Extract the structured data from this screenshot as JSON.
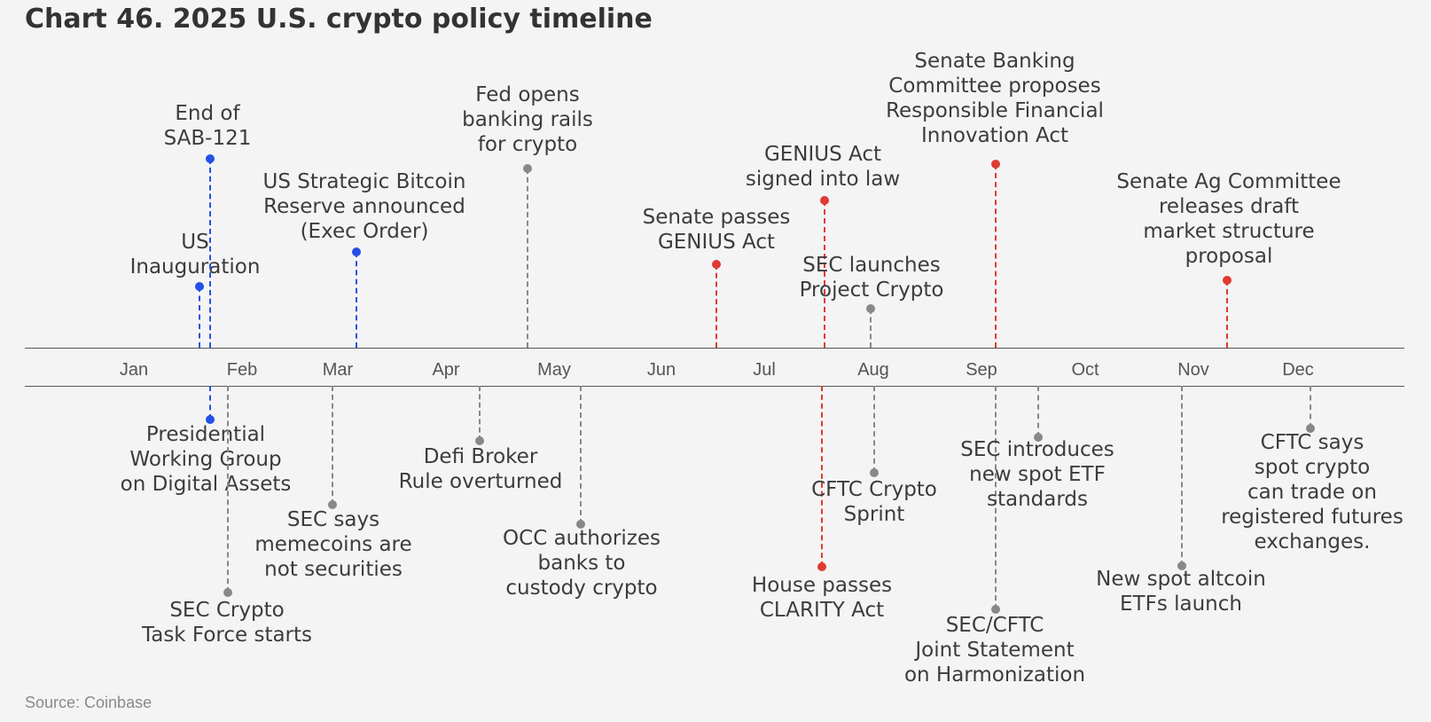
{
  "title": "Chart 46. 2025 U.S. crypto policy timeline",
  "source": "Source: Coinbase",
  "colors": {
    "blue": "#2450e6",
    "red": "#e03a32",
    "gray": "#888888",
    "text": "#3c3c3c"
  },
  "months": [
    "Jan",
    "Feb",
    "Mar",
    "Apr",
    "May",
    "Jun",
    "Jul",
    "Aug",
    "Sep",
    "Oct",
    "Nov",
    "Dec"
  ],
  "events_above": [
    {
      "label": "US\nInauguration",
      "color": "blue"
    },
    {
      "label": "End of\nSAB-121",
      "color": "blue"
    },
    {
      "label": "US Strategic Bitcoin\nReserve announced\n(Exec Order)",
      "color": "blue"
    },
    {
      "label": "Fed opens\nbanking rails\nfor crypto",
      "color": "gray"
    },
    {
      "label": "Senate passes\nGENIUS Act",
      "color": "red"
    },
    {
      "label": "GENIUS Act\nsigned into law",
      "color": "red"
    },
    {
      "label": "SEC launches\nProject Crypto",
      "color": "gray"
    },
    {
      "label": "Senate Banking\nCommittee proposes\nResponsible Financial\nInnovation Act",
      "color": "red"
    },
    {
      "label": "Senate Ag Committee\nreleases draft\nmarket structure\nproposal",
      "color": "red"
    }
  ],
  "events_below": [
    {
      "label": "Presidential\nWorking Group\non Digital Assets",
      "color": "blue"
    },
    {
      "label": "SEC Crypto\nTask Force starts",
      "color": "gray"
    },
    {
      "label": "SEC says\nmemecoins are\nnot securities",
      "color": "gray"
    },
    {
      "label": "Defi Broker\nRule overturned",
      "color": "gray"
    },
    {
      "label": "OCC authorizes\nbanks to\ncustody crypto",
      "color": "gray"
    },
    {
      "label": "House passes\nCLARITY Act",
      "color": "red"
    },
    {
      "label": "CFTC Crypto\nSprint",
      "color": "gray"
    },
    {
      "label": "SEC/CFTC\nJoint Statement\non Harmonization",
      "color": "gray"
    },
    {
      "label": "SEC introduces\nnew spot ETF\nstandards",
      "color": "gray"
    },
    {
      "label": "New spot altcoin\nETFs launch",
      "color": "gray"
    },
    {
      "label": "CFTC says\nspot crypto\ncan trade on\nregistered futures\nexchanges.",
      "color": "gray"
    }
  ]
}
